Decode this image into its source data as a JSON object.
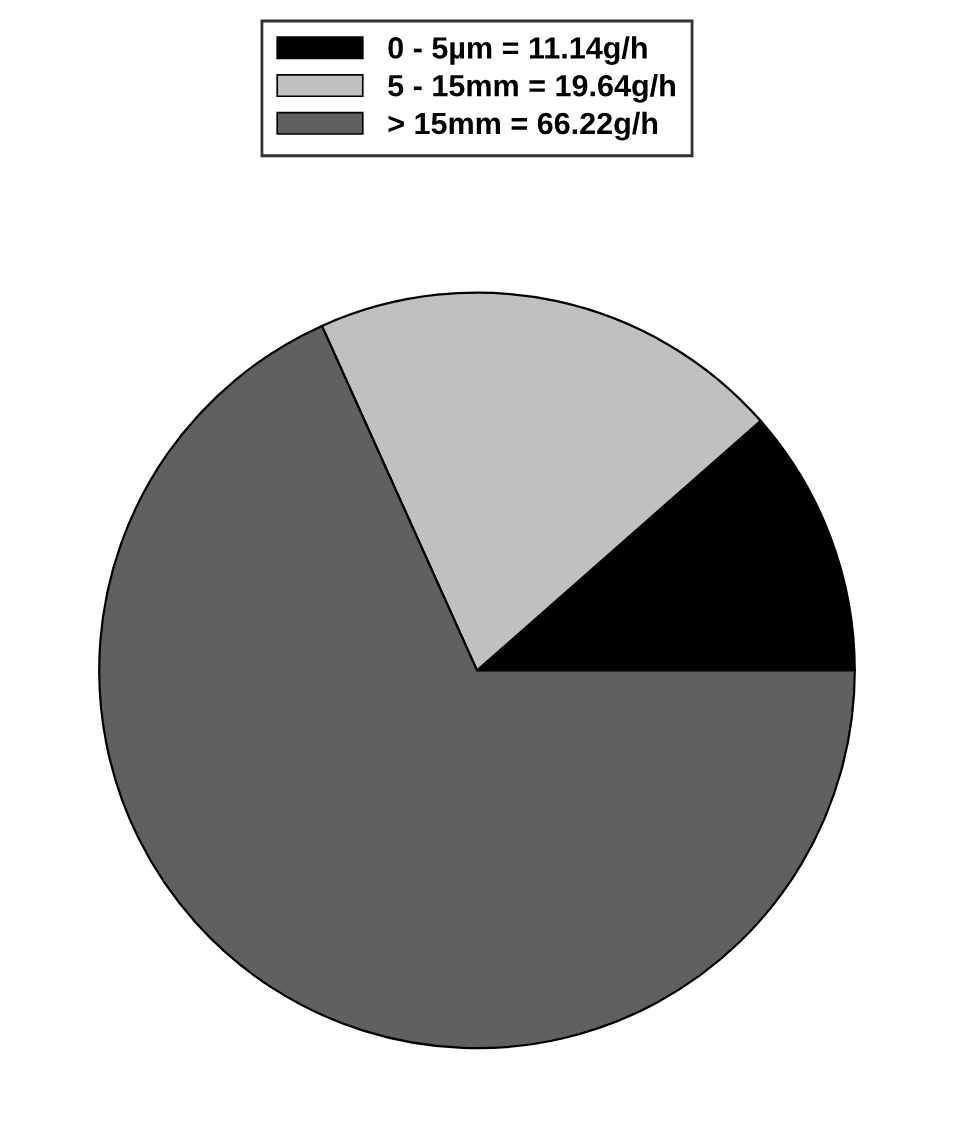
{
  "chart_data": {
    "type": "pie",
    "categories": [
      "0 - 5µm = 11.14g/h",
      "5 - 15mm = 19.64g/h",
      "> 15mm = 66.22g/h"
    ],
    "values": [
      11.14,
      19.64,
      66.22
    ],
    "colors": [
      "#000000",
      "#c0c0c0",
      "#606060"
    ],
    "legend": "top"
  }
}
